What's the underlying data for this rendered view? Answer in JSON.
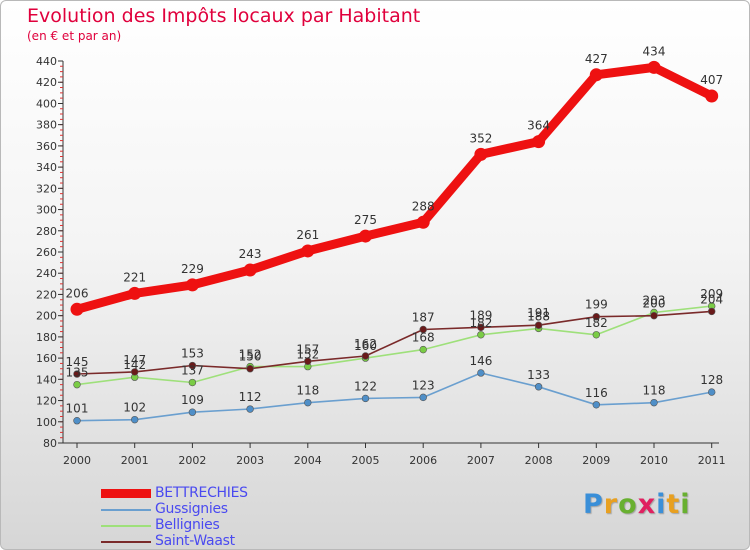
{
  "title": "Evolution des Impôts locaux par Habitant",
  "subtitle": "(en € et par an)",
  "logo": {
    "letters": [
      "P",
      "r",
      "o",
      "x",
      "i",
      "t",
      "i"
    ],
    "colors": [
      "#3a8fd8",
      "#e8a020",
      "#68b030",
      "#e02060",
      "#3a8fd8",
      "#e8a020",
      "#68b030"
    ]
  },
  "chart_data": {
    "type": "line",
    "x": [
      "2000",
      "2001",
      "2002",
      "2003",
      "2004",
      "2005",
      "2006",
      "2007",
      "2008",
      "2009",
      "2010",
      "2011"
    ],
    "ylim": [
      80,
      440
    ],
    "yticks": [
      80,
      100,
      120,
      140,
      160,
      180,
      200,
      220,
      240,
      260,
      280,
      300,
      320,
      340,
      360,
      380,
      400,
      420,
      440
    ],
    "grid": false,
    "legend": "bottom-left",
    "series": [
      {
        "name": "BETTRECHIES",
        "values": [
          206,
          221,
          229,
          243,
          261,
          275,
          288,
          352,
          364,
          427,
          434,
          407
        ],
        "color": "#ee1111",
        "marker": "#ee1111",
        "width": "thick"
      },
      {
        "name": "Gussignies",
        "values": [
          101,
          102,
          109,
          112,
          118,
          122,
          123,
          146,
          133,
          116,
          118,
          128
        ],
        "color": "#6a9fcf",
        "marker": "#4f8fc8",
        "width": "thin"
      },
      {
        "name": "Bellignies",
        "values": [
          135,
          142,
          137,
          152,
          152,
          160,
          168,
          182,
          188,
          182,
          203,
          209
        ],
        "color": "#9ee07a",
        "marker": "#7acc45",
        "width": "thin"
      },
      {
        "name": "Saint-Waast",
        "values": [
          145,
          147,
          153,
          150,
          157,
          162,
          187,
          189,
          191,
          199,
          200,
          204
        ],
        "color": "#7a2a2a",
        "marker": "#6a1a1a",
        "width": "thin"
      }
    ]
  }
}
